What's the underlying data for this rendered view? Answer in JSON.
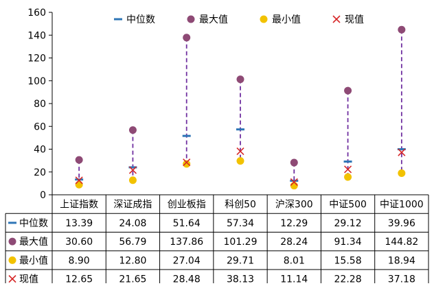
{
  "chart_data": {
    "type": "table",
    "chart_kind": "range plot with data table",
    "categories": [
      "上证指数",
      "深证成指",
      "创业板指",
      "科创50",
      "沪深300",
      "中证500",
      "中证1000"
    ],
    "series": [
      {
        "name": "中位数",
        "marker": "dash",
        "color": "#2E75B6",
        "values": [
          13.39,
          24.08,
          51.64,
          57.34,
          12.29,
          29.12,
          39.96
        ]
      },
      {
        "name": "最大值",
        "marker": "circle",
        "color": "#8E4A75",
        "values": [
          30.6,
          56.79,
          137.86,
          101.29,
          28.24,
          91.34,
          144.82
        ]
      },
      {
        "name": "最小值",
        "marker": "circle",
        "color": "#F2C200",
        "values": [
          8.9,
          12.8,
          27.04,
          29.71,
          8.01,
          15.58,
          18.94
        ]
      },
      {
        "name": "现值",
        "marker": "x",
        "color": "#D62728",
        "values": [
          12.65,
          21.65,
          28.48,
          38.13,
          11.14,
          22.28,
          37.18
        ]
      }
    ],
    "range_line": {
      "from": "最小值",
      "to": "最大值",
      "style": "dashed",
      "color": "#7030A0"
    },
    "y_axis": {
      "ylim": [
        0,
        160
      ],
      "ticks": [
        0,
        20,
        40,
        60,
        80,
        100,
        120,
        140,
        160
      ]
    },
    "legend_position": "top",
    "grid": false,
    "value_table": {
      "rows": [
        [
          "13.39",
          "24.08",
          "51.64",
          "57.34",
          "12.29",
          "29.12",
          "39.96"
        ],
        [
          "30.60",
          "56.79",
          "137.86",
          "101.29",
          "28.24",
          "91.34",
          "144.82"
        ],
        [
          "8.90",
          "12.80",
          "27.04",
          "29.71",
          "8.01",
          "15.58",
          "18.94"
        ],
        [
          "12.65",
          "21.65",
          "28.48",
          "38.13",
          "11.14",
          "22.28",
          "37.18"
        ]
      ]
    }
  }
}
